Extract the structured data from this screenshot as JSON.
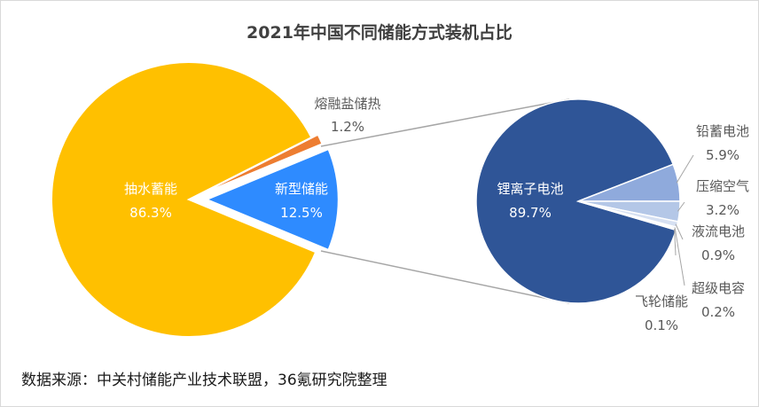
{
  "chart_data": [
    {
      "type": "pie",
      "title": "2021年中国不同储能方式装机占比",
      "slices": [
        {
          "label": "抽水蓄能",
          "value": 86.3,
          "display": "86.3%",
          "color": "#FFC000",
          "label_color": "#ffffff"
        },
        {
          "label": "熔融盐储热",
          "value": 1.2,
          "display": "1.2%",
          "color": "#ED7D31",
          "label_color": "#595959"
        },
        {
          "label": "新型储能",
          "value": 12.5,
          "display": "12.5%",
          "color": "#2E8BFF",
          "label_color": "#ffffff"
        }
      ]
    },
    {
      "type": "pie",
      "parent_slice": "新型储能",
      "slices": [
        {
          "label": "锂离子电池",
          "value": 89.7,
          "display": "89.7%",
          "color": "#2F5597",
          "label_color": "#ffffff"
        },
        {
          "label": "铅蓄电池",
          "value": 5.9,
          "display": "5.9%",
          "color": "#8FAADC",
          "label_color": "#595959"
        },
        {
          "label": "压缩空气",
          "value": 3.2,
          "display": "3.2%",
          "color": "#B4C7E7",
          "label_color": "#595959"
        },
        {
          "label": "液流电池",
          "value": 0.9,
          "display": "0.9%",
          "color": "#D6E0F2",
          "label_color": "#595959"
        },
        {
          "label": "超级电容",
          "value": 0.2,
          "display": "0.2%",
          "color": "#1F3864",
          "label_color": "#595959"
        },
        {
          "label": "飞轮储能",
          "value": 0.1,
          "display": "0.1%",
          "color": "#7F7F7F",
          "label_color": "#595959"
        }
      ]
    }
  ],
  "source_text": "数据来源：中关村储能产业技术联盟，36氪研究院整理"
}
